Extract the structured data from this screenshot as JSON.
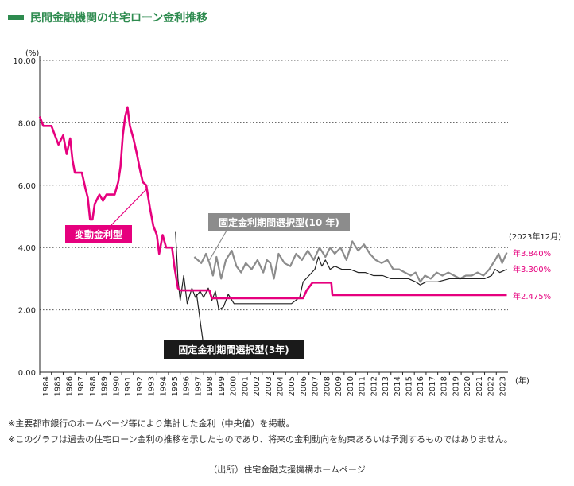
{
  "title": "民間金融機関の住宅ローン金利推移",
  "colors": {
    "title": "#2e8b4f",
    "variable": "#e6007e",
    "fixed10": "#8c8c8c",
    "fixed3": "#222222"
  },
  "chart_data": {
    "type": "line",
    "xlabel": "(年)",
    "ylabel": "(%)",
    "ylim": [
      0,
      10
    ],
    "yticks": [
      "0.00",
      "2.00",
      "4.00",
      "6.00",
      "8.00",
      "10.00"
    ],
    "xticks": [
      "1984",
      "1985",
      "1986",
      "1987",
      "1988",
      "1989",
      "1990",
      "1991",
      "1992",
      "1993",
      "1994",
      "1995",
      "1996",
      "1997",
      "1998",
      "1999",
      "2000",
      "2001",
      "2002",
      "2003",
      "2004",
      "2005",
      "2006",
      "2007",
      "2008",
      "2009",
      "2010",
      "2011",
      "2012",
      "2013",
      "2014",
      "2015",
      "2016",
      "2017",
      "2018",
      "2019",
      "2020",
      "2021",
      "2022",
      "2023"
    ],
    "grid": "horizontal dotted",
    "series": [
      {
        "name": "変動金利型",
        "end_label": "年2.475%",
        "points": [
          [
            1984,
            8.2
          ],
          [
            1984.3,
            7.9
          ],
          [
            1985,
            7.9
          ],
          [
            1985.3,
            7.6
          ],
          [
            1985.6,
            7.3
          ],
          [
            1986,
            7.6
          ],
          [
            1986.3,
            7.0
          ],
          [
            1986.6,
            7.5
          ],
          [
            1986.8,
            6.8
          ],
          [
            1987,
            6.4
          ],
          [
            1987.6,
            6.4
          ],
          [
            1987.9,
            5.9
          ],
          [
            1988.1,
            5.6
          ],
          [
            1988.3,
            4.9
          ],
          [
            1988.5,
            4.9
          ],
          [
            1988.7,
            5.4
          ],
          [
            1989.1,
            5.7
          ],
          [
            1989.4,
            5.5
          ],
          [
            1989.7,
            5.7
          ],
          [
            1990.4,
            5.7
          ],
          [
            1990.7,
            6.1
          ],
          [
            1990.9,
            6.6
          ],
          [
            1991.1,
            7.6
          ],
          [
            1991.3,
            8.2
          ],
          [
            1991.5,
            8.5
          ],
          [
            1991.7,
            7.9
          ],
          [
            1992.0,
            7.5
          ],
          [
            1992.3,
            7.0
          ],
          [
            1992.5,
            6.6
          ],
          [
            1992.8,
            6.1
          ],
          [
            1993.1,
            6.0
          ],
          [
            1993.4,
            5.3
          ],
          [
            1993.7,
            4.7
          ],
          [
            1994.0,
            4.4
          ],
          [
            1994.2,
            3.8
          ],
          [
            1994.5,
            4.4
          ],
          [
            1994.8,
            4.0
          ],
          [
            1995.3,
            4.0
          ],
          [
            1995.5,
            3.4
          ],
          [
            1995.8,
            2.7
          ],
          [
            1996,
            2.625
          ],
          [
            1998.5,
            2.625
          ],
          [
            1998.7,
            2.375
          ],
          [
            2006.5,
            2.375
          ],
          [
            2006.8,
            2.625
          ],
          [
            2007.3,
            2.875
          ],
          [
            2008.9,
            2.875
          ],
          [
            2009.0,
            2.475
          ],
          [
            2023.9,
            2.475
          ]
        ]
      },
      {
        "name": "固定金利期間選択型(10年)",
        "end_label": "年3.840%",
        "points": [
          [
            1997.2,
            3.7
          ],
          [
            1997.8,
            3.5
          ],
          [
            1998.2,
            3.8
          ],
          [
            1998.5,
            3.5
          ],
          [
            1998.8,
            3.1
          ],
          [
            1999.1,
            3.7
          ],
          [
            1999.5,
            3.0
          ],
          [
            1999.9,
            3.6
          ],
          [
            2000.4,
            3.9
          ],
          [
            2000.8,
            3.4
          ],
          [
            2001.2,
            3.2
          ],
          [
            2001.6,
            3.5
          ],
          [
            2002.1,
            3.3
          ],
          [
            2002.6,
            3.6
          ],
          [
            2003.1,
            3.2
          ],
          [
            2003.4,
            3.6
          ],
          [
            2003.7,
            3.5
          ],
          [
            2004.0,
            3.0
          ],
          [
            2004.4,
            3.8
          ],
          [
            2004.9,
            3.5
          ],
          [
            2005.4,
            3.4
          ],
          [
            2005.9,
            3.8
          ],
          [
            2006.4,
            3.6
          ],
          [
            2006.9,
            3.9
          ],
          [
            2007.4,
            3.6
          ],
          [
            2007.9,
            4.0
          ],
          [
            2008.4,
            3.7
          ],
          [
            2008.8,
            4.0
          ],
          [
            2009.2,
            3.8
          ],
          [
            2009.7,
            4.0
          ],
          [
            2010.2,
            3.6
          ],
          [
            2010.7,
            4.2
          ],
          [
            2011.2,
            3.9
          ],
          [
            2011.7,
            4.1
          ],
          [
            2012.2,
            3.8
          ],
          [
            2012.7,
            3.6
          ],
          [
            2013.2,
            3.5
          ],
          [
            2013.7,
            3.6
          ],
          [
            2014.2,
            3.3
          ],
          [
            2014.7,
            3.3
          ],
          [
            2015.2,
            3.2
          ],
          [
            2015.7,
            3.1
          ],
          [
            2016.1,
            3.2
          ],
          [
            2016.5,
            2.9
          ],
          [
            2016.9,
            3.1
          ],
          [
            2017.4,
            3.0
          ],
          [
            2017.9,
            3.2
          ],
          [
            2018.4,
            3.1
          ],
          [
            2018.9,
            3.2
          ],
          [
            2019.4,
            3.1
          ],
          [
            2019.9,
            3.0
          ],
          [
            2020.4,
            3.1
          ],
          [
            2020.9,
            3.1
          ],
          [
            2021.4,
            3.2
          ],
          [
            2021.9,
            3.1
          ],
          [
            2022.4,
            3.3
          ],
          [
            2022.9,
            3.6
          ],
          [
            2023.2,
            3.8
          ],
          [
            2023.5,
            3.5
          ],
          [
            2023.9,
            3.84
          ]
        ]
      },
      {
        "name": "固定金利期間選択型(3年)",
        "end_label": "年3.300%",
        "points": [
          [
            1995.6,
            4.5
          ],
          [
            1995.8,
            3.0
          ],
          [
            1996.0,
            2.3
          ],
          [
            1996.3,
            3.1
          ],
          [
            1996.6,
            2.2
          ],
          [
            1997.0,
            2.7
          ],
          [
            1997.3,
            2.4
          ],
          [
            1997.7,
            2.6
          ],
          [
            1998.0,
            2.4
          ],
          [
            1998.4,
            2.7
          ],
          [
            1998.7,
            2.3
          ],
          [
            1999.0,
            2.6
          ],
          [
            1999.3,
            2.0
          ],
          [
            1999.7,
            2.1
          ],
          [
            2000.1,
            2.5
          ],
          [
            2000.6,
            2.2
          ],
          [
            2001.2,
            2.2
          ],
          [
            2002.5,
            2.2
          ],
          [
            2004.0,
            2.2
          ],
          [
            2005.5,
            2.2
          ],
          [
            2006.2,
            2.4
          ],
          [
            2006.5,
            2.9
          ],
          [
            2007.0,
            3.1
          ],
          [
            2007.5,
            3.3
          ],
          [
            2007.8,
            3.7
          ],
          [
            2008.1,
            3.4
          ],
          [
            2008.4,
            3.6
          ],
          [
            2008.8,
            3.3
          ],
          [
            2009.2,
            3.4
          ],
          [
            2009.8,
            3.3
          ],
          [
            2010.5,
            3.3
          ],
          [
            2011.2,
            3.2
          ],
          [
            2011.8,
            3.2
          ],
          [
            2012.5,
            3.1
          ],
          [
            2013.3,
            3.1
          ],
          [
            2014.0,
            3.0
          ],
          [
            2014.8,
            3.0
          ],
          [
            2015.5,
            3.0
          ],
          [
            2016.1,
            2.9
          ],
          [
            2016.5,
            2.8
          ],
          [
            2017.0,
            2.9
          ],
          [
            2018.0,
            2.9
          ],
          [
            2019.0,
            3.0
          ],
          [
            2020.0,
            3.0
          ],
          [
            2021.0,
            3.0
          ],
          [
            2022.0,
            3.0
          ],
          [
            2022.6,
            3.1
          ],
          [
            2022.9,
            3.3
          ],
          [
            2023.3,
            3.2
          ],
          [
            2023.9,
            3.3
          ]
        ]
      }
    ],
    "labels": {
      "variable": "変動金利型",
      "fixed10": "固定金利期間選択型(10 年)",
      "fixed3": "固定金利期間選択型(3年)",
      "date_note": "(2023年12月)"
    }
  },
  "notes": [
    "※主要都市銀行のホームページ等により集計した金利（中央値）を掲載。",
    "※このグラフは過去の住宅ローン金利の推移を示したものであり、将来の金利動向を約束あるいは予測するものではありません。"
  ],
  "source": "（出所）住宅金融支援機構ホームページ"
}
